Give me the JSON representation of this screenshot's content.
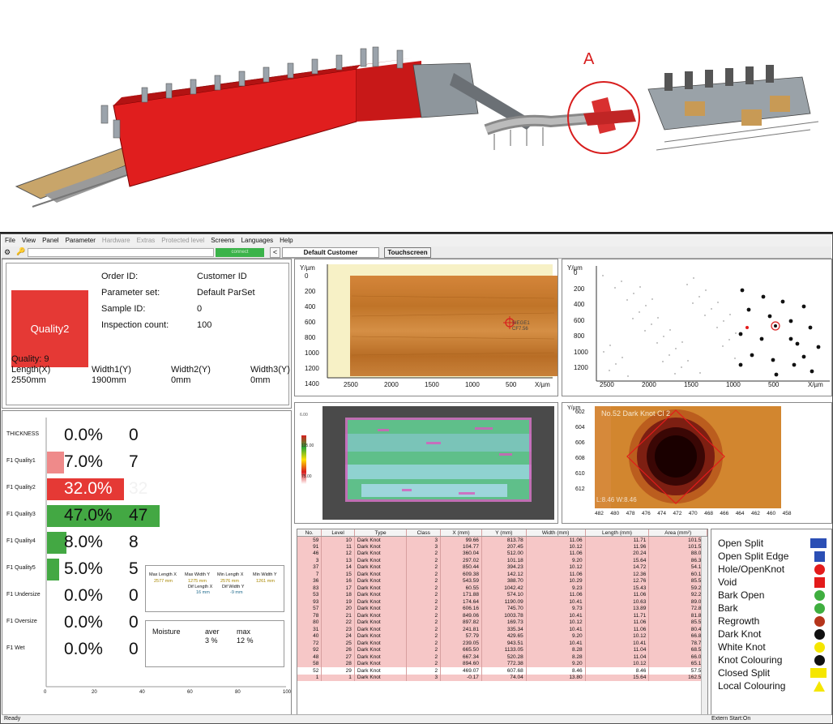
{
  "annotation": {
    "label": "A"
  },
  "menu": [
    "File",
    "View",
    "Panel",
    "Parameter",
    "Hardware",
    "Extras",
    "Protected level",
    "Screens",
    "Languages",
    "Help"
  ],
  "menu_disabled": [
    false,
    false,
    false,
    false,
    true,
    true,
    true,
    false,
    false,
    false
  ],
  "toolbar": {
    "connect": "connect",
    "customer": "Default Customer",
    "prev": "<",
    "touchscreen": "Touchscreen"
  },
  "info": {
    "quality_box": "Quality2",
    "order_label": "Order ID:",
    "order_value": "Customer ID",
    "param_label": "Parameter set:",
    "param_value": "Default ParSet",
    "sample_label": "Sample ID:",
    "sample_value": "0",
    "count_label": "Inspection count:",
    "count_value": "100",
    "quality": "Quality: 9",
    "length_label": "Length(X)",
    "length_value": "2550mm",
    "width1_label": "Width1(Y)",
    "width1_value": "1900mm",
    "width2_label": "Width2(Y)",
    "width2_value": "0mm",
    "width3_label": "Width3(Y)",
    "width3_value": "0mm"
  },
  "dist": {
    "rows": [
      {
        "label": "THICKNESS",
        "pct": "0.0%",
        "count": "0",
        "value": 0,
        "color": "#ffffff"
      },
      {
        "label": "F1 Quality1",
        "pct": "7.0%",
        "count": "7",
        "value": 7,
        "color": "#ef8a8a"
      },
      {
        "label": "F1 Quality2",
        "pct": "32.0%",
        "count": "32",
        "value": 32,
        "color": "#e53935"
      },
      {
        "label": "F1 Quality3",
        "pct": "47.0%",
        "count": "47",
        "value": 47,
        "color": "#43a843"
      },
      {
        "label": "F1 Quality4",
        "pct": "8.0%",
        "count": "8",
        "value": 8,
        "color": "#43a843"
      },
      {
        "label": "F1 Quality5",
        "pct": "5.0%",
        "count": "5",
        "value": 5,
        "color": "#43a843"
      },
      {
        "label": "F1 Undersize",
        "pct": "0.0%",
        "count": "0",
        "value": 0,
        "color": "#ffffff"
      },
      {
        "label": "F1 Oversize",
        "pct": "0.0%",
        "count": "0",
        "value": 0,
        "color": "#ffffff"
      },
      {
        "label": "F1 Wet",
        "pct": "0.0%",
        "count": "0",
        "value": 0,
        "color": "#ffffff"
      }
    ],
    "axis_ticks": [
      "0",
      "20",
      "40",
      "60",
      "80",
      "100"
    ],
    "measure": {
      "h1": "Max Length X",
      "h2": "Max Width Y",
      "h3": "Min Length X",
      "h4": "Min Width Y",
      "v1": "2577 mm",
      "v2": "1275 mm",
      "v3": "2576 mm",
      "v4": "1261 mm",
      "h5": "Dif Length X",
      "h6": "Dif Width Y",
      "v5": "16 mm",
      "v6": "-9 mm"
    },
    "moisture": {
      "label": "Moisture",
      "aver_label": "aver",
      "max_label": "max",
      "aver": "3 %",
      "max": "12 %"
    }
  },
  "board_view": {
    "y_label": "Y/µm",
    "x_label": "X/µm",
    "yticks": [
      "0",
      "200",
      "400",
      "600",
      "800",
      "1000",
      "1200",
      "1400"
    ],
    "xticks": [
      "2500",
      "2000",
      "1500",
      "1000",
      "500"
    ],
    "marker_text": "SIEGE1 CF7.56"
  },
  "scatter_view": {
    "y_label": "Y/µm",
    "x_label": "X/µm",
    "yticks": [
      "0",
      "200",
      "400",
      "600",
      "800",
      "1000",
      "1200"
    ],
    "xticks": [
      "2500",
      "2000",
      "1500",
      "1000",
      "500"
    ]
  },
  "moisture_view": {
    "scale": [
      "6.00",
      "125.00",
      "75.00"
    ]
  },
  "zoom_view": {
    "y_label": "Y/µm",
    "title": "No.52 Dark Knot Cl 2",
    "foot": "L:8.46 W:8.46",
    "yticks": [
      "602",
      "604",
      "606",
      "608",
      "610",
      "612"
    ],
    "xticks": [
      "482",
      "480",
      "478",
      "476",
      "474",
      "472",
      "470",
      "468",
      "466",
      "464",
      "462",
      "460",
      "458"
    ]
  },
  "table": {
    "headers": [
      "No.",
      "Level",
      "Type",
      "Class",
      "X (mm)",
      "Y (mm)",
      "Width (mm)",
      "Length (mm)",
      "Area (mm²)"
    ],
    "rows": [
      [
        "59",
        "10",
        "Dark Knot",
        "3",
        "99.66",
        "813.78",
        "11.06",
        "11.71",
        "101.59"
      ],
      [
        "91",
        "11",
        "Dark Knot",
        "3",
        "104.77",
        "207.45",
        "10.12",
        "11.96",
        "101.59"
      ],
      [
        "46",
        "12",
        "Dark Knot",
        "2",
        "360.04",
        "512.00",
        "11.06",
        "20.24",
        "88.04"
      ],
      [
        "3",
        "13",
        "Dark Knot",
        "2",
        "297.02",
        "101.18",
        "9.20",
        "15.64",
        "86.35"
      ],
      [
        "37",
        "14",
        "Dark Knot",
        "2",
        "850.44",
        "394.23",
        "10.12",
        "14.72",
        "54.18"
      ],
      [
        "7",
        "15",
        "Dark Knot",
        "2",
        "609.38",
        "142.12",
        "11.06",
        "12.36",
        "60.10"
      ],
      [
        "36",
        "16",
        "Dark Knot",
        "2",
        "543.59",
        "388.70",
        "10.29",
        "12.76",
        "85.50"
      ],
      [
        "83",
        "17",
        "Dark Knot",
        "2",
        "60.55",
        "1042.42",
        "9.23",
        "15.43",
        "59.26"
      ],
      [
        "53",
        "18",
        "Dark Knot",
        "2",
        "171.88",
        "574.10",
        "11.06",
        "11.06",
        "92.27"
      ],
      [
        "93",
        "19",
        "Dark Knot",
        "2",
        "174.64",
        "1190.09",
        "10.41",
        "10.63",
        "89.06"
      ],
      [
        "57",
        "20",
        "Dark Knot",
        "2",
        "606.16",
        "745.70",
        "9.73",
        "13.89",
        "72.80"
      ],
      [
        "78",
        "21",
        "Dark Knot",
        "2",
        "849.06",
        "1003.78",
        "10.41",
        "11.71",
        "81.80"
      ],
      [
        "80",
        "22",
        "Dark Knot",
        "2",
        "897.82",
        "169.73",
        "10.12",
        "11.06",
        "85.50"
      ],
      [
        "31",
        "23",
        "Dark Knot",
        "2",
        "241.81",
        "335.34",
        "10.41",
        "11.06",
        "80.42"
      ],
      [
        "40",
        "24",
        "Dark Knot",
        "2",
        "57.79",
        "429.65",
        "9.20",
        "10.12",
        "66.88"
      ],
      [
        "72",
        "25",
        "Dark Knot",
        "2",
        "239.05",
        "943.51",
        "10.41",
        "10.41",
        "78.73"
      ],
      [
        "92",
        "26",
        "Dark Knot",
        "2",
        "665.50",
        "1133.05",
        "8.28",
        "11.04",
        "68.57"
      ],
      [
        "48",
        "27",
        "Dark Knot",
        "2",
        "667.34",
        "520.28",
        "8.28",
        "11.04",
        "66.03"
      ],
      [
        "58",
        "28",
        "Dark Knot",
        "2",
        "894.60",
        "772.38",
        "9.20",
        "10.12",
        "65.18"
      ],
      [
        "52",
        "29",
        "Dark Knot",
        "2",
        "469.07",
        "607.68",
        "8.46",
        "8.46",
        "57.56"
      ],
      [
        "1",
        "1",
        "Dark Knot",
        "3",
        "-0.17",
        "74.04",
        "13.80",
        "15.64",
        "162.54"
      ]
    ]
  },
  "legend": [
    {
      "label": "Open Split",
      "shape": "rect-wide",
      "color": "#2b4fb5"
    },
    {
      "label": "Open Split Edge",
      "shape": "square",
      "color": "#2b4fb5"
    },
    {
      "label": "Hole/OpenKnot",
      "shape": "circle",
      "color": "#e31b1b"
    },
    {
      "label": "Void",
      "shape": "square",
      "color": "#e31b1b"
    },
    {
      "label": "Bark Open",
      "shape": "circle",
      "color": "#3fae3f"
    },
    {
      "label": "Bark",
      "shape": "circle",
      "color": "#3fae3f"
    },
    {
      "label": "Regrowth",
      "shape": "circle",
      "color": "#b5351b"
    },
    {
      "label": "Dark Knot",
      "shape": "circle",
      "color": "#111111"
    },
    {
      "label": "White Knot",
      "shape": "circle",
      "color": "#f5e600"
    },
    {
      "label": "Knot Colouring",
      "shape": "circle",
      "color": "#111111"
    },
    {
      "label": "Closed Split",
      "shape": "rect-wide",
      "color": "#f5e600"
    },
    {
      "label": "Local Colouring",
      "shape": "triangle",
      "color": "#f5e600"
    }
  ],
  "status": {
    "left": "Ready",
    "right": "Extern Start:On"
  }
}
